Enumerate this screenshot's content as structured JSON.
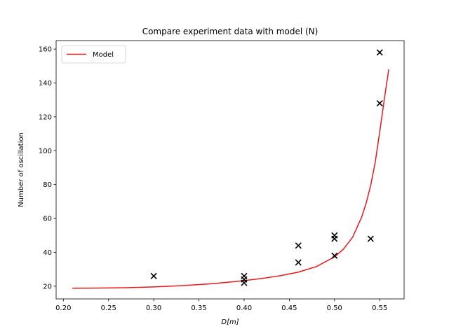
{
  "chart_data": {
    "type": "scatter",
    "title": "Compare experiment data with model (N)",
    "xlabel": "D[m]",
    "ylabel": "Number of oscillation",
    "xlim": [
      0.192,
      0.577
    ],
    "ylim": [
      12.5,
      165
    ],
    "xticks": [
      0.2,
      0.25,
      0.3,
      0.35,
      0.4,
      0.45,
      0.5,
      0.55
    ],
    "xtick_labels": [
      "0.20",
      "0.25",
      "0.30",
      "0.35",
      "0.40",
      "0.45",
      "0.50",
      "0.55"
    ],
    "yticks": [
      20,
      40,
      60,
      80,
      100,
      120,
      140,
      160
    ],
    "ytick_labels": [
      "20",
      "40",
      "60",
      "80",
      "100",
      "120",
      "140",
      "160"
    ],
    "grid": false,
    "legend": {
      "position": "top-left",
      "entries": [
        "Model"
      ]
    },
    "series": [
      {
        "name": "Model",
        "kind": "line",
        "color": "#e8191b",
        "x": [
          0.21,
          0.24,
          0.27,
          0.3,
          0.33,
          0.36,
          0.38,
          0.4,
          0.42,
          0.44,
          0.46,
          0.48,
          0.5,
          0.51,
          0.52,
          0.53,
          0.535,
          0.54,
          0.545,
          0.55,
          0.555,
          0.56
        ],
        "y": [
          18.8,
          18.9,
          19.1,
          19.6,
          20.3,
          21.3,
          22.2,
          23.3,
          24.6,
          26.2,
          28.3,
          31.6,
          37.3,
          41.9,
          48.9,
          60.7,
          69.0,
          79.5,
          93.0,
          111.0,
          130.0,
          148.0
        ]
      },
      {
        "kind": "scatter",
        "marker": "x",
        "color": "#000000",
        "x": [
          0.3,
          0.4,
          0.4,
          0.4,
          0.46,
          0.46,
          0.5,
          0.5,
          0.5,
          0.54,
          0.55,
          0.55
        ],
        "y": [
          26,
          26,
          24,
          22,
          44,
          34,
          50,
          48,
          38,
          48,
          158,
          128
        ]
      }
    ]
  }
}
